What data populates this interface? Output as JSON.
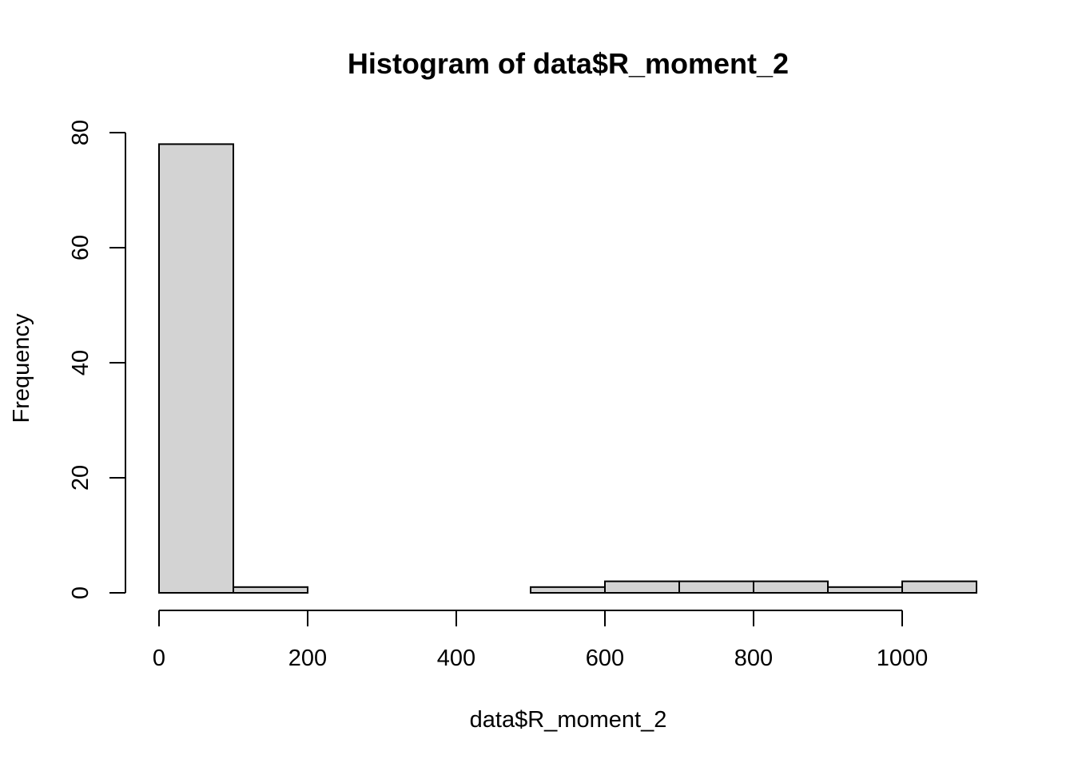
{
  "chart_data": {
    "type": "bar",
    "title": "Histogram of data$R_moment_2",
    "xlabel": "data$R_moment_2",
    "ylabel": "Frequency",
    "bin_edges": [
      0,
      100,
      200,
      300,
      400,
      500,
      600,
      700,
      800,
      900,
      1000,
      1100
    ],
    "values": [
      78,
      1,
      0,
      0,
      0,
      1,
      2,
      2,
      2,
      1,
      2
    ],
    "xlim": [
      0,
      1100
    ],
    "ylim": [
      0,
      80
    ],
    "x_ticks": [
      0,
      200,
      400,
      600,
      800,
      1000
    ],
    "y_ticks": [
      0,
      20,
      40,
      60,
      80
    ],
    "bar_fill": "#d3d3d3",
    "grid": false
  }
}
